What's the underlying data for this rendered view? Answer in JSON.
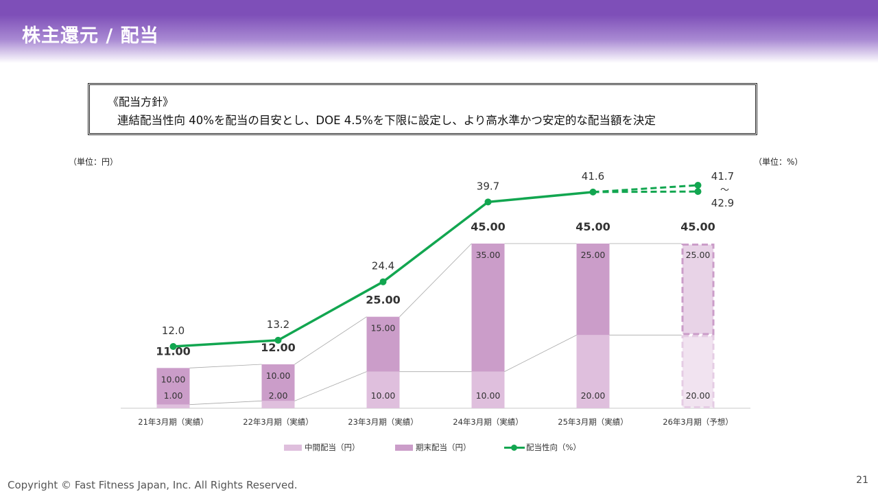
{
  "page": {
    "title": "株主還元 / 配当",
    "copyright": "Copyright © Fast Fitness Japan, Inc. All Rights Reserved.",
    "page_number": "21"
  },
  "policy": {
    "heading": "《配当方針》",
    "text": "連結配当性向 40%を配当の目安とし、DOE 4.5%を下限に設定し、より高水準かつ安定的な配当額を決定"
  },
  "units": {
    "left": "（単位：円）",
    "right": "（単位：%）"
  },
  "colors": {
    "interim": "#dfbfdd",
    "year_end": "#cb9dc9",
    "payout": "#12a650",
    "header": "#7e4fb8"
  },
  "chart_data": {
    "type": "bar",
    "stacked": true,
    "categories": [
      "21年3月期（実績）",
      "22年3月期（実績）",
      "23年3月期（実績）",
      "24年3月期（実績）",
      "25年3月期（実績）",
      "26年3月期（予想）"
    ],
    "forecast_index": 5,
    "series": [
      {
        "name": "中間配当（円）",
        "values": [
          1.0,
          2.0,
          10.0,
          10.0,
          20.0,
          20.0
        ],
        "labels": [
          "1.00",
          "2.00",
          "10.00",
          "10.00",
          "20.00",
          "20.00"
        ]
      },
      {
        "name": "期末配当（円）",
        "values": [
          10.0,
          10.0,
          15.0,
          35.0,
          25.0,
          25.0
        ],
        "labels": [
          "10.00",
          "10.00",
          "15.00",
          "35.00",
          "25.00",
          "25.00"
        ]
      }
    ],
    "totals": [
      "11.00",
      "12.00",
      "25.00",
      "45.00",
      "45.00",
      "45.00"
    ],
    "line": {
      "name": "配当性向（%）",
      "values": [
        12.0,
        13.2,
        24.4,
        39.7,
        41.6
      ],
      "labels": [
        "12.0",
        "13.2",
        "24.4",
        "39.7",
        "41.6"
      ],
      "forecast_range": [
        41.7,
        42.9
      ],
      "forecast_label": [
        "41.7",
        "～",
        "42.9"
      ]
    },
    "ylim": [
      0,
      45
    ],
    "y2lim": [
      0,
      45
    ],
    "legend": "bottom"
  }
}
